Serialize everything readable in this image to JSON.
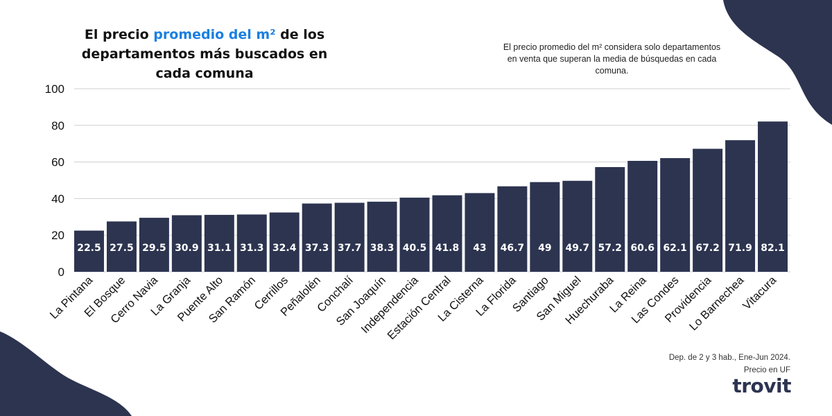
{
  "header": {
    "title_pre": "El precio ",
    "title_accent": "promedio del m²",
    "title_post": " de los departamentos más buscados en cada comuna",
    "note": "El precio promedio del m² considera solo departamentos en venta que superan la media de búsquedas en cada comuna."
  },
  "footer": {
    "source": "Dep. de 2 y 3 hab., Ene-Jun 2024.",
    "unit": "Precio en UF",
    "logo": "trovit"
  },
  "colors": {
    "bar": "#2c3450",
    "accent": "#1a7fe0",
    "grid": "#cfcfcf",
    "text": "#111111",
    "bar_label": "#ffffff"
  },
  "chart_data": {
    "type": "bar",
    "categories": [
      "La Pintana",
      "El Bosque",
      "Cerro Navia",
      "La Granja",
      "Puente Alto",
      "San Ramón",
      "Cerrillos",
      "Peñalolén",
      "Conchalí",
      "San Joaquín",
      "Independencia",
      "Estación Central",
      "La Cisterna",
      "La Florida",
      "Santiago",
      "San Miguel",
      "Huechuraba",
      "La Reina",
      "Las Condes",
      "Providencia",
      "Lo Barnechea",
      "Vitacura"
    ],
    "values": [
      22.5,
      27.5,
      29.5,
      30.9,
      31.1,
      31.3,
      32.4,
      37.3,
      37.7,
      38.3,
      40.5,
      41.8,
      43,
      46.7,
      49,
      49.7,
      57.2,
      60.6,
      62.1,
      67.2,
      71.9,
      82.1
    ],
    "value_labels": [
      "22.5",
      "27.5",
      "29.5",
      "30.9",
      "31.1",
      "31.3",
      "32.4",
      "37.3",
      "37.7",
      "38.3",
      "40.5",
      "41.8",
      "43",
      "46.7",
      "49",
      "49.7",
      "57.2",
      "60.6",
      "62.1",
      "67.2",
      "71.9",
      "82.1"
    ],
    "yticks": [
      "0",
      "20",
      "40",
      "60",
      "80",
      "100"
    ],
    "ylim": [
      0,
      100
    ],
    "grid": true,
    "xlabel": "",
    "ylabel": ""
  }
}
